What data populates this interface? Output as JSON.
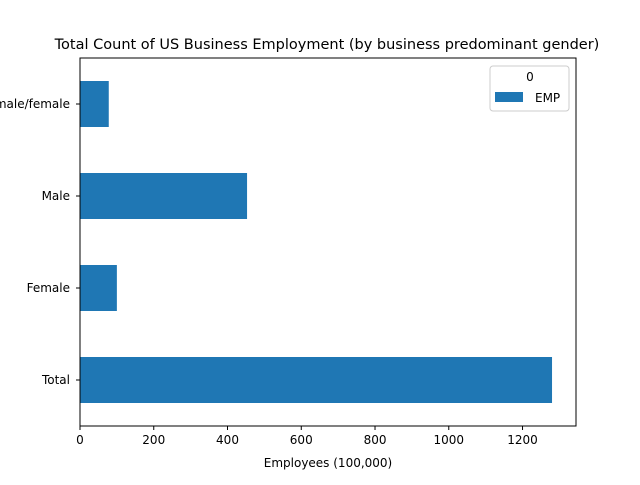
{
  "chart_data": {
    "type": "bar",
    "orientation": "horizontal",
    "title": "Total Count of US Business Employment (by business predominant gender)",
    "xlabel": "Employees (100,000)",
    "ylabel": "",
    "categories": [
      "Total",
      "Female",
      "Male",
      "Equally male/female"
    ],
    "series": [
      {
        "name": "EMP",
        "values": [
          1280,
          100,
          453,
          78
        ]
      }
    ],
    "xlim": [
      0,
      1345
    ],
    "xticks": [
      0,
      200,
      400,
      600,
      800,
      1000,
      1200
    ],
    "legend": {
      "title": "0",
      "entries": [
        "EMP"
      ],
      "placement": "top-right"
    },
    "grid": false,
    "bar_color": "#1f77b4"
  }
}
